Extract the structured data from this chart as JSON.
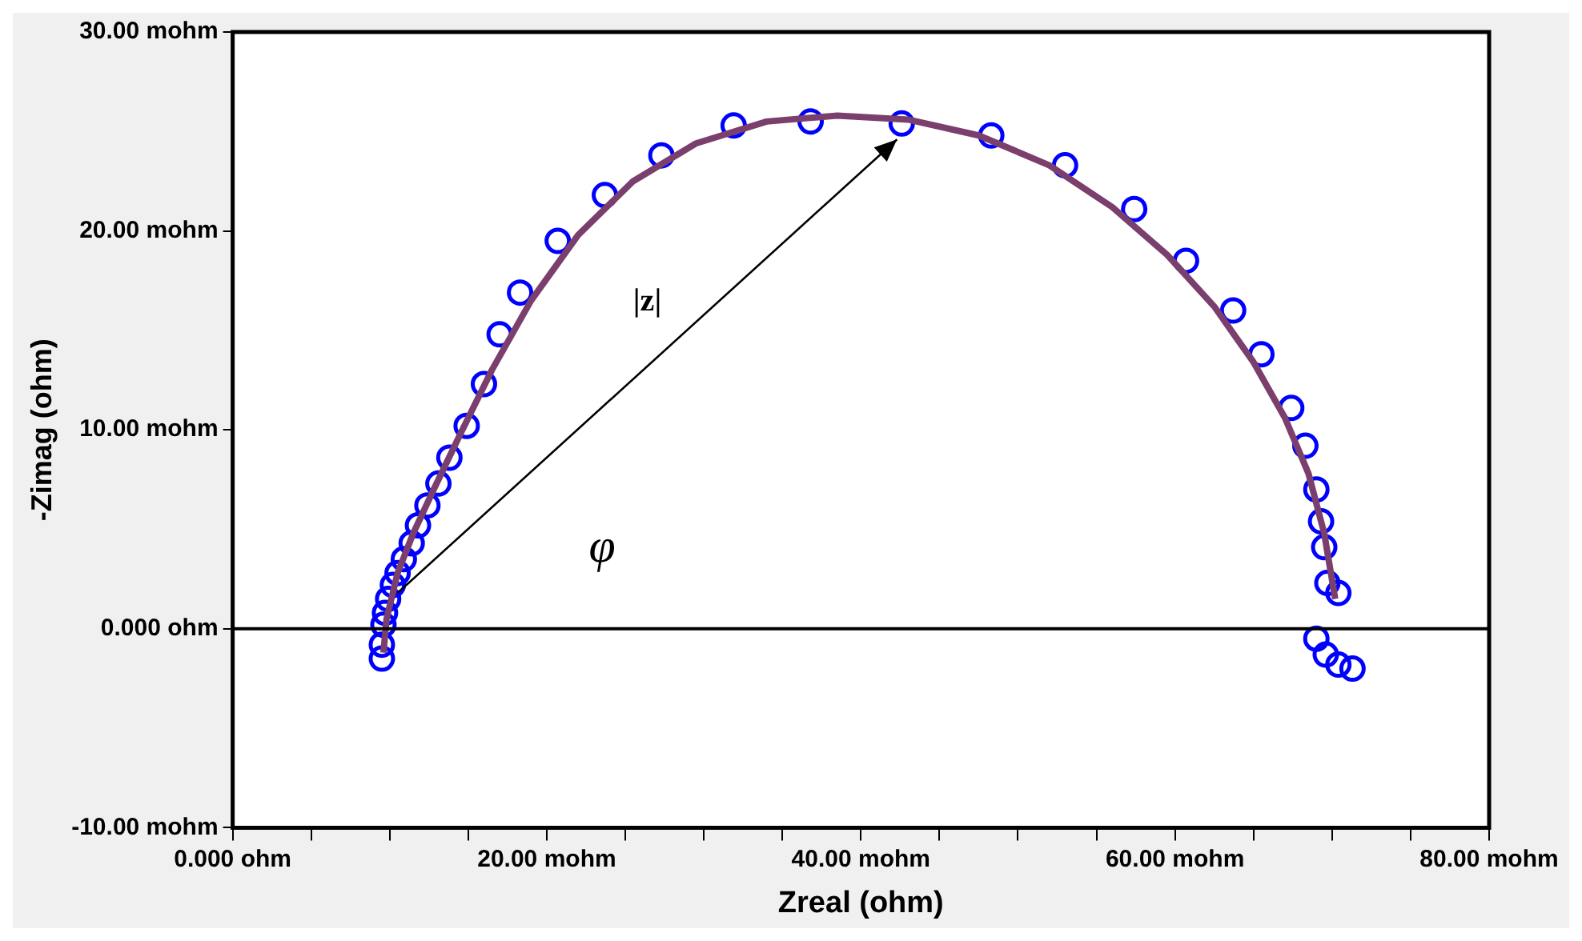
{
  "chart_data": {
    "type": "scatter",
    "xlabel": "Zreal (ohm)",
    "ylabel": "-Zimag (ohm)",
    "xlim": [
      0,
      80
    ],
    "ylim": [
      -10,
      30
    ],
    "xticks": [
      {
        "value": 0,
        "label": "0.000 ohm"
      },
      {
        "value": 5,
        "label": null
      },
      {
        "value": 10,
        "label": null
      },
      {
        "value": 15,
        "label": null
      },
      {
        "value": 20,
        "label": "20.00 mohm"
      },
      {
        "value": 25,
        "label": null
      },
      {
        "value": 30,
        "label": null
      },
      {
        "value": 35,
        "label": null
      },
      {
        "value": 40,
        "label": "40.00 mohm"
      },
      {
        "value": 45,
        "label": null
      },
      {
        "value": 50,
        "label": null
      },
      {
        "value": 55,
        "label": null
      },
      {
        "value": 60,
        "label": "60.00 mohm"
      },
      {
        "value": 65,
        "label": null
      },
      {
        "value": 70,
        "label": null
      },
      {
        "value": 75,
        "label": null
      },
      {
        "value": 80,
        "label": "80.00 mohm"
      }
    ],
    "yticks": [
      {
        "value": -10,
        "label": "-10.00 mohm"
      },
      {
        "value": 0,
        "label": "0.000 ohm"
      },
      {
        "value": 10,
        "label": "10.00 mohm"
      },
      {
        "value": 20,
        "label": "20.00 mohm"
      },
      {
        "value": 30,
        "label": "30.00 mohm"
      }
    ],
    "grid": false,
    "legend": false,
    "marker": "circle",
    "ref_lines": [
      {
        "axis": "y",
        "value": 0,
        "color": "#000000"
      }
    ],
    "annotations": [
      "|z|",
      "φ"
    ],
    "series": [
      {
        "color": "#0000ff",
        "x": [
          9.5,
          9.5,
          9.6,
          9.7,
          9.9,
          10.2,
          10.5,
          10.9,
          11.4,
          11.8,
          12.4,
          13.1,
          13.8,
          14.9,
          16.0,
          17.0,
          18.3,
          20.7,
          23.7,
          27.3,
          31.9,
          36.8,
          42.6,
          48.3,
          53.0,
          57.4,
          60.7,
          63.7,
          65.5,
          67.4,
          68.3,
          69.0,
          69.3,
          69.5,
          69.7,
          70.4,
          69.0,
          69.6,
          70.4,
          71.3
        ],
        "values": [
          -1.5,
          -0.8,
          0.2,
          0.8,
          1.5,
          2.2,
          2.8,
          3.5,
          4.3,
          5.2,
          6.2,
          7.3,
          8.6,
          10.2,
          12.3,
          14.8,
          16.9,
          19.5,
          21.8,
          23.8,
          25.3,
          25.5,
          25.4,
          24.8,
          23.3,
          21.1,
          18.5,
          16.0,
          13.8,
          11.1,
          9.2,
          7.0,
          5.4,
          4.1,
          2.3,
          1.8,
          -0.5,
          -1.3,
          -1.8,
          -2.0
        ]
      },
      {
        "type": "line",
        "color": "#7b3f6e",
        "marker": "none",
        "x": [
          9.6,
          9.8,
          10.5,
          11.5,
          12.8,
          14.5,
          16.5,
          19,
          22,
          25.5,
          29.5,
          34,
          38.5,
          43,
          47.5,
          52,
          56,
          59.5,
          62.5,
          65,
          67,
          68.5,
          69.5,
          70.2
        ],
        "values": [
          -1.2,
          0.5,
          2.8,
          4.8,
          7.0,
          9.8,
          13.0,
          16.5,
          19.8,
          22.5,
          24.4,
          25.5,
          25.8,
          25.6,
          24.8,
          23.3,
          21.2,
          18.8,
          16.2,
          13.4,
          10.6,
          7.8,
          4.8,
          1.5
        ]
      }
    ]
  }
}
